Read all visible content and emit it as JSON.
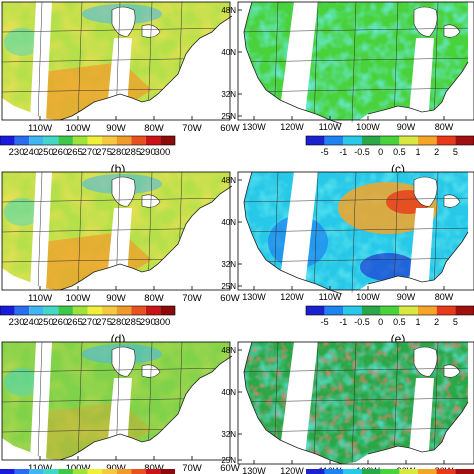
{
  "left_column": {
    "x_ticks": [
      "110W",
      "100W",
      "90W",
      "80W",
      "70W",
      "60W"
    ],
    "colorbar_ticks": [
      "230",
      "240",
      "250",
      "260",
      "265",
      "270",
      "275",
      "280",
      "285",
      "290",
      "300"
    ],
    "colorbar_colors": [
      "#1a1adc",
      "#2a6ef0",
      "#3fb6f2",
      "#43d7c8",
      "#3ec84a",
      "#9ee23b",
      "#f0f03a",
      "#f5c840",
      "#f09a2a",
      "#e5521f",
      "#c81414",
      "#8c0a0a"
    ],
    "panel_labels": [
      "(b)",
      "(d)"
    ]
  },
  "right_column": {
    "y_ticks": [
      "48N",
      "40N",
      "32N",
      "25N"
    ],
    "x_ticks": [
      "130W",
      "120W",
      "110W",
      "100W",
      "90W",
      "80W"
    ],
    "colorbar_ticks": [
      "-5",
      "-1",
      "-0.5",
      "0",
      "0.5",
      "1",
      "2",
      "5"
    ],
    "colorbar_colors": [
      "#1a22d0",
      "#1e82f0",
      "#28c8e8",
      "#2aa848",
      "#4ad23c",
      "#d8e840",
      "#f5a428",
      "#e83a1a",
      "#a01010"
    ],
    "panel_labels": [
      "(c)",
      "(e)"
    ]
  }
}
